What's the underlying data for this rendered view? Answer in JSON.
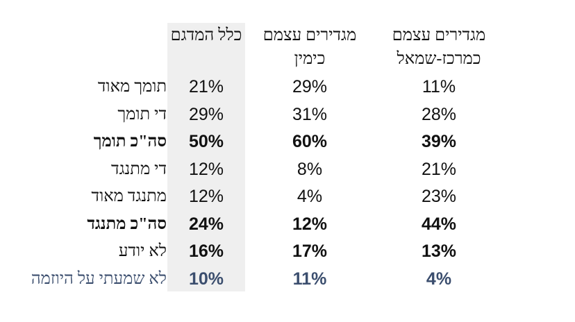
{
  "chart_data": {
    "type": "table",
    "columns": [
      {
        "lines": [
          "כלל המדגם"
        ]
      },
      {
        "lines": [
          "מגדירים עצמם",
          "כימין"
        ]
      },
      {
        "lines": [
          "מגדירים עצמם",
          "כמרכז-שמאל"
        ]
      }
    ],
    "rows": [
      {
        "label": "תומך מאוד",
        "values": [
          "21%",
          "29%",
          "11%"
        ],
        "bold": false,
        "color": "#111111"
      },
      {
        "label": "די תומך",
        "values": [
          "29%",
          "31%",
          "28%"
        ],
        "bold": false,
        "color": "#111111"
      },
      {
        "label": "סה\"כ תומך",
        "values": [
          "50%",
          "60%",
          "39%"
        ],
        "bold": true,
        "color": "#111111"
      },
      {
        "label": "די מתנגד",
        "values": [
          "12%",
          "8%",
          "21%"
        ],
        "bold": false,
        "color": "#111111"
      },
      {
        "label": "מתנגד מאוד",
        "values": [
          "12%",
          "4%",
          "23%"
        ],
        "bold": false,
        "color": "#111111"
      },
      {
        "label": "סה\"כ מתנגד",
        "values": [
          "24%",
          "12%",
          "44%"
        ],
        "bold": true,
        "color": "#111111"
      },
      {
        "label": "לא יודע",
        "values": [
          "16%",
          "17%",
          "13%"
        ],
        "bold": "values",
        "color": "#111111"
      },
      {
        "label": "לא שמעתי על היוזמה",
        "values": [
          "10%",
          "11%",
          "4%"
        ],
        "bold": "values",
        "color": "#3b4e6e"
      }
    ],
    "highlighted_column": 0,
    "highlight_color": "#efefef"
  }
}
